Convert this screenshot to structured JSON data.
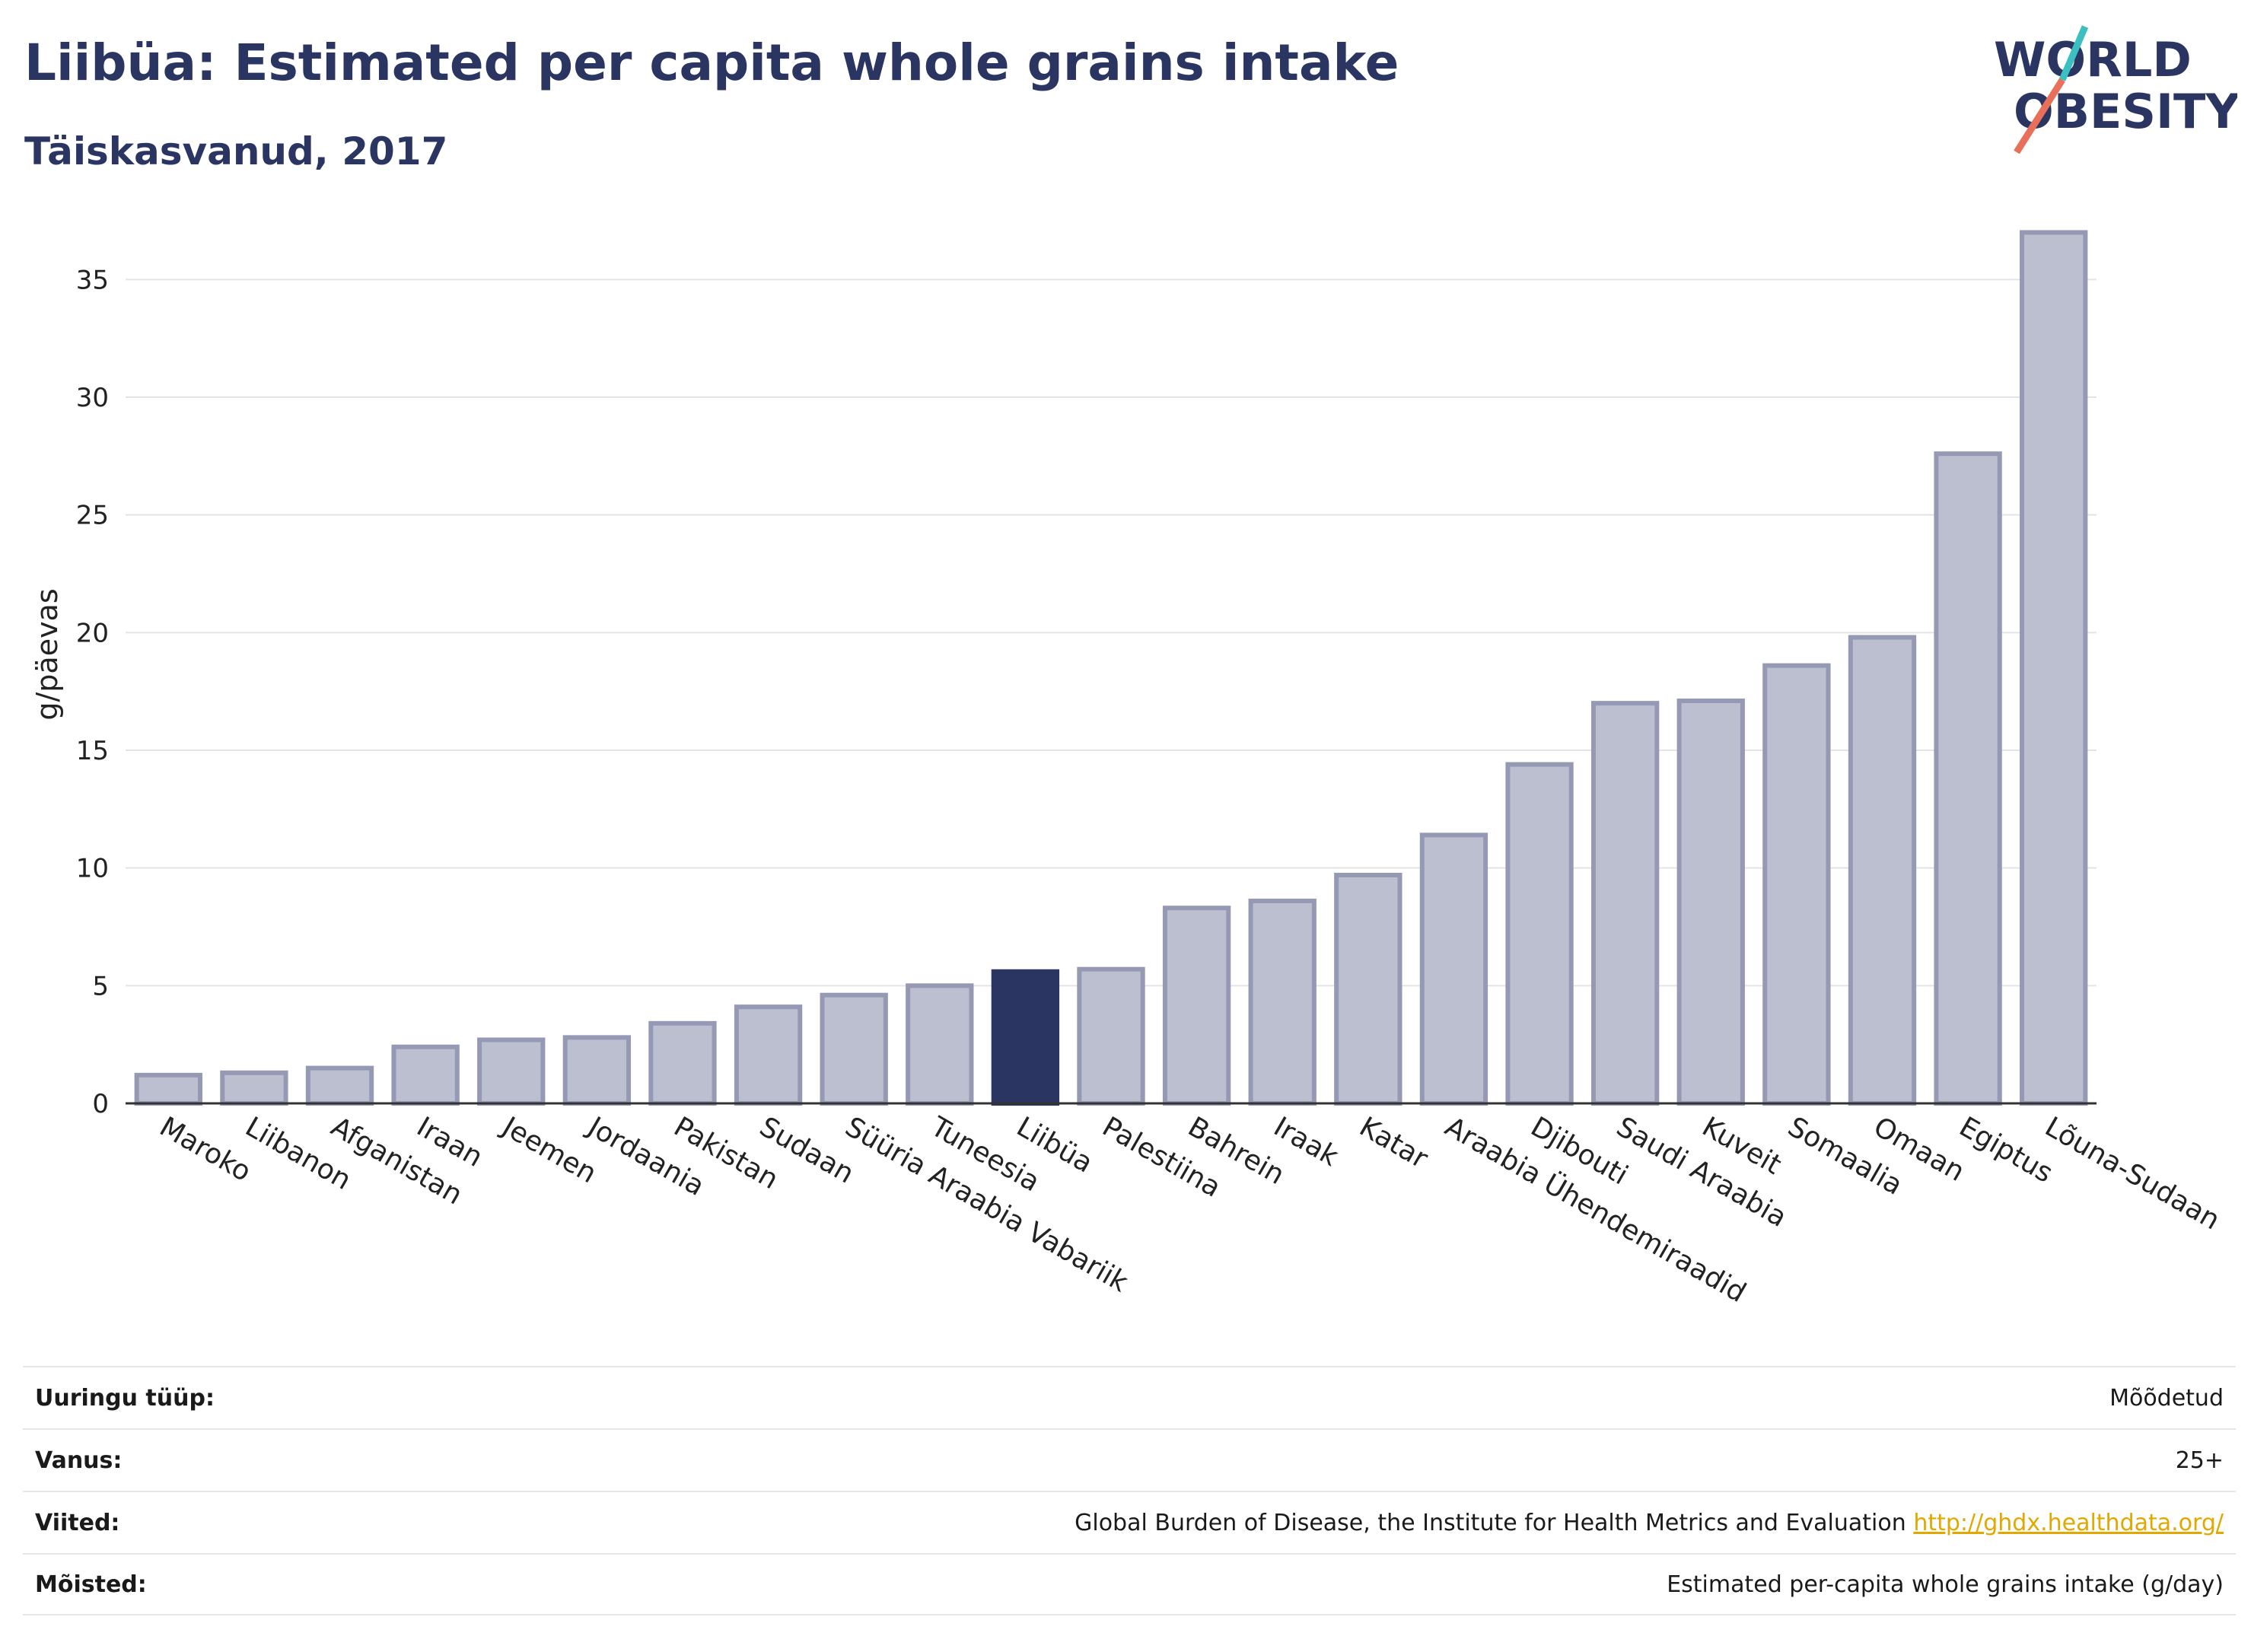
{
  "header": {
    "title": "Liibüa: Estimated per capita whole grains intake",
    "subtitle": "Täiskasvanud, 2017"
  },
  "logo": {
    "line1": "WORLD",
    "line2": "OBESITY",
    "icon": "world-obesity-logo"
  },
  "chart_data": {
    "type": "bar",
    "ylabel": "g/päevas",
    "ylim": [
      0,
      37.5
    ],
    "yticks": [
      0,
      5,
      10,
      15,
      20,
      25,
      30,
      35
    ],
    "grid": true,
    "highlight": "Liibüa",
    "colors": {
      "bar": "#bcbfcf",
      "bar_border": "#9599b3",
      "highlight": "#2b3561"
    },
    "categories": [
      "Maroko",
      "Liibanon",
      "Afganistan",
      "Iraan",
      "Jeemen",
      "Jordaania",
      "Pakistan",
      "Sudaan",
      "Süüria Araabia Vabariik",
      "Tuneesia",
      "Liibüa",
      "Palestiina",
      "Bahrein",
      "Iraak",
      "Katar",
      "Araabia Ühendemiraadid",
      "Djibouti",
      "Saudi Araabia",
      "Kuveit",
      "Somaalia",
      "Omaan",
      "Egiptus",
      "Lõuna-Sudaan"
    ],
    "values": [
      1.2,
      1.3,
      1.5,
      2.4,
      2.7,
      2.8,
      3.4,
      4.1,
      4.6,
      5.0,
      5.6,
      5.7,
      8.3,
      8.6,
      9.7,
      11.4,
      14.4,
      17.0,
      17.1,
      18.6,
      19.8,
      27.6,
      37.0
    ]
  },
  "meta": [
    {
      "key": "Uuringu tüüp:",
      "value": "Mõõdetud"
    },
    {
      "key": "Vanus:",
      "value": "25+"
    },
    {
      "key": "Viited:",
      "value": "Global Burden of Disease, the Institute for Health Metrics and Evaluation",
      "link": "http://ghdx.healthdata.org/"
    },
    {
      "key": "Mõisted:",
      "value": "Estimated per-capita whole grains intake (g/day)"
    }
  ]
}
